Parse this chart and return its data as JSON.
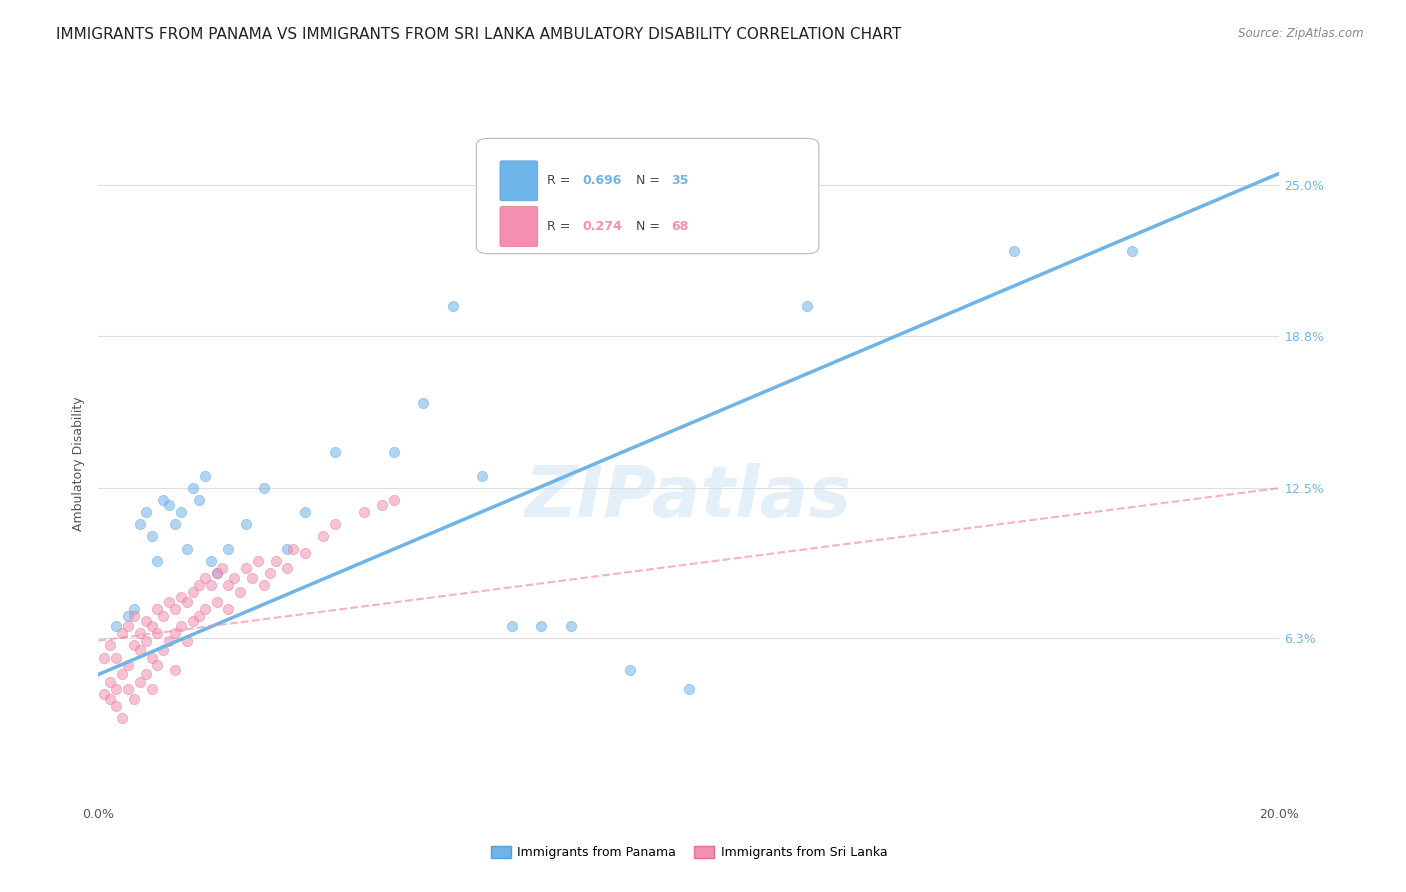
{
  "title": "IMMIGRANTS FROM PANAMA VS IMMIGRANTS FROM SRI LANKA AMBULATORY DISABILITY CORRELATION CHART",
  "source": "Source: ZipAtlas.com",
  "ylabel": "Ambulatory Disability",
  "watermark": "ZIPatlas",
  "xlim": [
    0.0,
    0.2
  ],
  "ylim": [
    -0.005,
    0.275
  ],
  "xticks": [
    0.0,
    0.05,
    0.1,
    0.15,
    0.2
  ],
  "xticklabels": [
    "0.0%",
    "",
    "",
    "",
    "20.0%"
  ],
  "ytick_positions": [
    0.063,
    0.125,
    0.188,
    0.25
  ],
  "ytick_labels": [
    "6.3%",
    "12.5%",
    "18.8%",
    "25.0%"
  ],
  "panama_color": "#6eb4e8",
  "panama_edge": "#5a9fd4",
  "srilanka_color": "#f48fb1",
  "srilanka_edge": "#e07090",
  "panama_R": 0.696,
  "panama_N": 35,
  "srilanka_R": 0.274,
  "srilanka_N": 68,
  "panama_scatter_x": [
    0.003,
    0.005,
    0.006,
    0.007,
    0.008,
    0.009,
    0.01,
    0.011,
    0.012,
    0.013,
    0.014,
    0.015,
    0.016,
    0.017,
    0.018,
    0.019,
    0.02,
    0.022,
    0.025,
    0.028,
    0.032,
    0.035,
    0.04,
    0.05,
    0.055,
    0.06,
    0.065,
    0.07,
    0.075,
    0.08,
    0.09,
    0.1,
    0.12,
    0.155,
    0.175
  ],
  "panama_scatter_y": [
    0.068,
    0.072,
    0.075,
    0.11,
    0.115,
    0.105,
    0.095,
    0.12,
    0.118,
    0.11,
    0.115,
    0.1,
    0.125,
    0.12,
    0.13,
    0.095,
    0.09,
    0.1,
    0.11,
    0.125,
    0.1,
    0.115,
    0.14,
    0.14,
    0.16,
    0.2,
    0.13,
    0.068,
    0.068,
    0.068,
    0.05,
    0.042,
    0.2,
    0.223,
    0.223
  ],
  "srilanka_scatter_x": [
    0.001,
    0.001,
    0.002,
    0.002,
    0.002,
    0.003,
    0.003,
    0.003,
    0.004,
    0.004,
    0.004,
    0.005,
    0.005,
    0.005,
    0.006,
    0.006,
    0.006,
    0.007,
    0.007,
    0.007,
    0.008,
    0.008,
    0.008,
    0.009,
    0.009,
    0.009,
    0.01,
    0.01,
    0.01,
    0.011,
    0.011,
    0.012,
    0.012,
    0.013,
    0.013,
    0.013,
    0.014,
    0.014,
    0.015,
    0.015,
    0.016,
    0.016,
    0.017,
    0.017,
    0.018,
    0.018,
    0.019,
    0.02,
    0.02,
    0.021,
    0.022,
    0.022,
    0.023,
    0.024,
    0.025,
    0.026,
    0.027,
    0.028,
    0.029,
    0.03,
    0.032,
    0.033,
    0.035,
    0.038,
    0.04,
    0.045,
    0.048,
    0.05
  ],
  "srilanka_scatter_y": [
    0.055,
    0.04,
    0.045,
    0.038,
    0.06,
    0.042,
    0.055,
    0.035,
    0.048,
    0.065,
    0.03,
    0.052,
    0.068,
    0.042,
    0.06,
    0.072,
    0.038,
    0.065,
    0.058,
    0.045,
    0.07,
    0.062,
    0.048,
    0.068,
    0.055,
    0.042,
    0.075,
    0.065,
    0.052,
    0.072,
    0.058,
    0.078,
    0.062,
    0.075,
    0.065,
    0.05,
    0.08,
    0.068,
    0.078,
    0.062,
    0.082,
    0.07,
    0.085,
    0.072,
    0.088,
    0.075,
    0.085,
    0.09,
    0.078,
    0.092,
    0.085,
    0.075,
    0.088,
    0.082,
    0.092,
    0.088,
    0.095,
    0.085,
    0.09,
    0.095,
    0.092,
    0.1,
    0.098,
    0.105,
    0.11,
    0.115,
    0.118,
    0.12
  ],
  "panama_line_x": [
    0.0,
    0.2
  ],
  "panama_line_y": [
    0.048,
    0.255
  ],
  "srilanka_line_x": [
    0.0,
    0.2
  ],
  "srilanka_line_y": [
    0.062,
    0.125
  ],
  "background_color": "#ffffff",
  "grid_color": "#dddddd",
  "title_fontsize": 11,
  "label_fontsize": 9,
  "tick_fontsize": 9,
  "scatter_size": 55,
  "scatter_alpha": 0.55
}
